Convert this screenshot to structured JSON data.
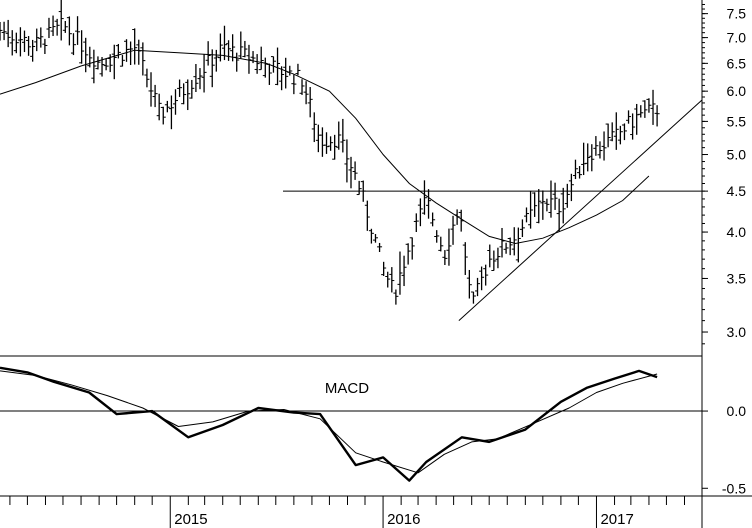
{
  "chart_data": [
    {
      "type": "bar",
      "subtype": "ohlc-weekly-price-bars-log-scale",
      "y_scale": "log",
      "ylim": [
        2.8,
        7.8
      ],
      "y_ticks": [
        "3.0",
        "3.5",
        "4.0",
        "4.5",
        "5.0",
        "5.5",
        "6.0",
        "6.5",
        "7.0",
        "7.5"
      ],
      "y_tick_values": [
        3.0,
        3.5,
        4.0,
        4.5,
        5.0,
        5.5,
        6.0,
        6.5,
        7.0,
        7.5
      ],
      "x_labels": [
        "2015",
        "2016",
        "2017"
      ],
      "x_label_dates": [
        "2015-01-01",
        "2016-01-01",
        "2017-01-01"
      ],
      "x_range": [
        "2014-03-15",
        "2017-07-01"
      ],
      "grid": false,
      "horizontal_line": 4.5,
      "trendline": {
        "start": [
          "2016-05-10",
          3.1
        ],
        "end": [
          "2017-07-01",
          5.85
        ]
      },
      "moving_average": [
        [
          "2014-03-15",
          5.95
        ],
        [
          "2014-05-15",
          6.15
        ],
        [
          "2014-08-01",
          6.45
        ],
        [
          "2014-11-01",
          6.75
        ],
        [
          "2015-01-15",
          6.7
        ],
        [
          "2015-04-01",
          6.65
        ],
        [
          "2015-06-15",
          6.5
        ],
        [
          "2015-08-01",
          6.3
        ],
        [
          "2015-10-01",
          6.0
        ],
        [
          "2015-11-15",
          5.55
        ],
        [
          "2016-01-01",
          5.0
        ],
        [
          "2016-02-15",
          4.6
        ],
        [
          "2016-04-01",
          4.35
        ],
        [
          "2016-05-15",
          4.15
        ],
        [
          "2016-07-01",
          3.95
        ],
        [
          "2016-08-15",
          3.87
        ],
        [
          "2016-10-01",
          3.93
        ],
        [
          "2016-11-15",
          4.05
        ],
        [
          "2017-01-01",
          4.2
        ],
        [
          "2017-02-15",
          4.38
        ],
        [
          "2017-04-01",
          4.7
        ]
      ],
      "price_path": [
        [
          "2014-03-15",
          7.15
        ],
        [
          "2014-05-15",
          6.85
        ],
        [
          "2014-07-01",
          7.25
        ],
        [
          "2014-09-01",
          6.5
        ],
        [
          "2014-11-01",
          6.8
        ],
        [
          "2014-12-15",
          5.6
        ],
        [
          "2015-02-01",
          6.1
        ],
        [
          "2015-04-01",
          6.8
        ],
        [
          "2015-06-01",
          6.55
        ],
        [
          "2015-07-01",
          6.4
        ],
        [
          "2015-08-15",
          6.2
        ],
        [
          "2015-09-15",
          5.2
        ],
        [
          "2015-10-15",
          5.25
        ],
        [
          "2015-11-15",
          4.7
        ],
        [
          "2016-01-01",
          3.6
        ],
        [
          "2016-01-20",
          3.35
        ],
        [
          "2016-03-15",
          4.4
        ],
        [
          "2016-04-15",
          3.75
        ],
        [
          "2016-05-10",
          4.3
        ],
        [
          "2016-06-01",
          3.2
        ],
        [
          "2016-07-01",
          3.7
        ],
        [
          "2016-08-15",
          3.95
        ],
        [
          "2016-10-01",
          4.4
        ],
        [
          "2016-11-01",
          4.3
        ],
        [
          "2016-12-15",
          5.0
        ],
        [
          "2017-02-01",
          5.25
        ],
        [
          "2017-03-15",
          5.6
        ],
        [
          "2017-04-15",
          5.7
        ]
      ]
    },
    {
      "type": "line",
      "title": "MACD",
      "ylim": [
        -0.55,
        0.35
      ],
      "y_ticks": [
        "0.0",
        "-0.5"
      ],
      "y_tick_values": [
        0.0,
        -0.5
      ],
      "zero_line": 0.0,
      "series": [
        {
          "role": "macd-thick",
          "points": [
            [
              "2014-03-15",
              0.28
            ],
            [
              "2014-05-01",
              0.25
            ],
            [
              "2014-06-15",
              0.19
            ],
            [
              "2014-08-15",
              0.12
            ],
            [
              "2014-10-01",
              -0.02
            ],
            [
              "2014-12-01",
              0.0
            ],
            [
              "2015-02-01",
              -0.17
            ],
            [
              "2015-04-01",
              -0.09
            ],
            [
              "2015-06-01",
              0.02
            ],
            [
              "2015-08-01",
              -0.01
            ],
            [
              "2015-09-15",
              -0.02
            ],
            [
              "2015-11-15",
              -0.35
            ],
            [
              "2016-01-01",
              -0.3
            ],
            [
              "2016-02-15",
              -0.45
            ],
            [
              "2016-03-15",
              -0.33
            ],
            [
              "2016-05-15",
              -0.17
            ],
            [
              "2016-07-01",
              -0.2
            ],
            [
              "2016-09-01",
              -0.12
            ],
            [
              "2016-11-01",
              0.06
            ],
            [
              "2016-12-15",
              0.15
            ],
            [
              "2017-02-01",
              0.21
            ],
            [
              "2017-03-15",
              0.26
            ],
            [
              "2017-04-15",
              0.22
            ]
          ]
        },
        {
          "role": "signal-thin",
          "points": [
            [
              "2014-03-15",
              0.26
            ],
            [
              "2014-05-15",
              0.23
            ],
            [
              "2014-07-15",
              0.17
            ],
            [
              "2014-09-15",
              0.1
            ],
            [
              "2014-11-15",
              0.02
            ],
            [
              "2015-01-15",
              -0.1
            ],
            [
              "2015-03-15",
              -0.07
            ],
            [
              "2015-05-15",
              0.0
            ],
            [
              "2015-07-15",
              0.01
            ],
            [
              "2015-09-15",
              -0.05
            ],
            [
              "2015-11-15",
              -0.27
            ],
            [
              "2016-01-01",
              -0.33
            ],
            [
              "2016-03-01",
              -0.4
            ],
            [
              "2016-04-15",
              -0.28
            ],
            [
              "2016-06-01",
              -0.2
            ],
            [
              "2016-07-15",
              -0.18
            ],
            [
              "2016-09-15",
              -0.08
            ],
            [
              "2016-11-15",
              0.02
            ],
            [
              "2017-01-01",
              0.12
            ],
            [
              "2017-02-15",
              0.18
            ],
            [
              "2017-04-15",
              0.24
            ]
          ]
        }
      ]
    }
  ]
}
